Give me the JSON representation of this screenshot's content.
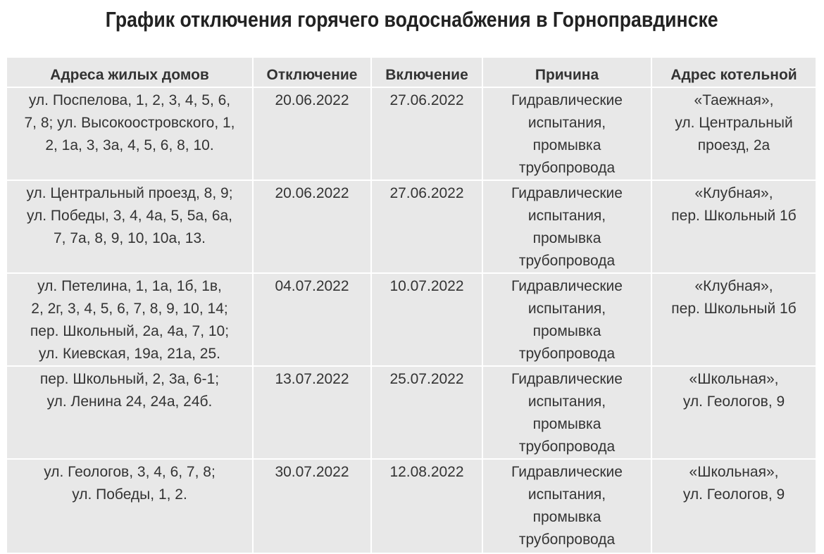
{
  "title": "График отключения горячего водоснабжения в Горноправдинске",
  "table": {
    "headers": [
      "Адреса жилых домов",
      "Отключение",
      "Включение",
      "Причина",
      "Адрес котельной"
    ],
    "rows": [
      {
        "addresses": [
          "ул. Поспелова, 1, 2, 3, 4, 5, 6,",
          "7, 8; ул. Высокоостровского, 1,",
          "2, 1а, 3, 3а, 4, 5, 6, 8, 10."
        ],
        "off": "20.06.2022",
        "on": "27.06.2022",
        "reason": [
          "Гидравлические",
          "испытания,",
          "промывка",
          "трубопровода"
        ],
        "boiler": [
          "«Таежная»,",
          "ул. Центральный",
          "проезд, 2а"
        ]
      },
      {
        "addresses": [
          "ул. Центральный проезд, 8, 9;",
          "ул. Победы, 3, 4, 4а, 5, 5а, 6а,",
          "7, 7а, 8, 9, 10, 10а, 13."
        ],
        "off": "20.06.2022",
        "on": "27.06.2022",
        "reason": [
          "Гидравлические",
          "испытания,",
          "промывка",
          "трубопровода"
        ],
        "boiler": [
          "«Клубная»,",
          "пер. Школьный 1б"
        ]
      },
      {
        "addresses": [
          "ул. Петелина, 1, 1а, 1б, 1в,",
          "2, 2г, 3, 4, 5, 6, 7, 8, 9, 10, 14;",
          "пер. Школьный, 2а, 4а, 7, 10;",
          "ул. Киевская, 19а, 21а, 25."
        ],
        "off": "04.07.2022",
        "on": "10.07.2022",
        "reason": [
          "Гидравлические",
          "испытания,",
          "промывка",
          "трубопровода"
        ],
        "boiler": [
          "«Клубная»,",
          "пер. Школьный 1б"
        ]
      },
      {
        "addresses": [
          "пер. Школьный, 2, 3а, 6-1;",
          "ул. Ленина 24, 24а, 24б."
        ],
        "off": "13.07.2022",
        "on": "25.07.2022",
        "reason": [
          "Гидравлические",
          "испытания,",
          "промывка",
          "трубопровода"
        ],
        "boiler": [
          "«Школьная»,",
          "ул. Геологов, 9"
        ]
      },
      {
        "addresses": [
          "ул. Геологов, 3, 4, 6, 7, 8;",
          "ул. Победы, 1, 2."
        ],
        "off": "30.07.2022",
        "on": "12.08.2022",
        "reason": [
          "Гидравлические",
          "испытания,",
          "промывка",
          "трубопровода"
        ],
        "boiler": [
          "«Школьная»,",
          "ул. Геологов, 9"
        ]
      }
    ]
  }
}
